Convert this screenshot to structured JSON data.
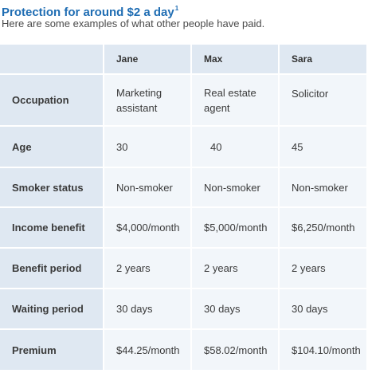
{
  "heading": {
    "title": "Protection for around $2 a day",
    "footnote": "1",
    "subtitle": "Here are some examples of what other people have paid."
  },
  "people": [
    "Jane",
    "Max",
    "Sara"
  ],
  "rows": [
    {
      "label": "Occupation",
      "values": [
        "Marketing assistant",
        "Real estate agent",
        "Solicitor"
      ]
    },
    {
      "label": "Age",
      "values": [
        "30",
        "40",
        "45"
      ]
    },
    {
      "label": "Smoker status",
      "values": [
        "Non-smoker",
        "Non-smoker",
        "Non-smoker"
      ]
    },
    {
      "label": "Income benefit",
      "values": [
        "$4,000/month",
        "$5,000/month",
        "$6,250/month"
      ]
    },
    {
      "label": "Benefit period",
      "values": [
        "2 years",
        "2 years",
        "2 years"
      ]
    },
    {
      "label": "Waiting period",
      "values": [
        "30 days",
        "30 days",
        "30 days"
      ]
    },
    {
      "label": "Premium",
      "values": [
        "$44.25/month",
        "$58.02/month",
        "$104.10/month"
      ]
    }
  ]
}
